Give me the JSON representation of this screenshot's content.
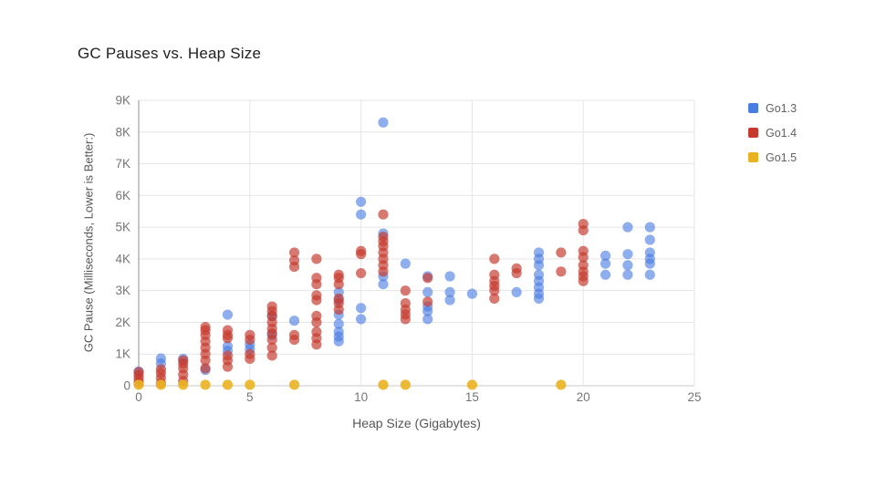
{
  "page": {
    "background": "#ffffff"
  },
  "chart_data": {
    "type": "scatter",
    "title": "GC Pauses vs. Heap Size",
    "xlabel": "Heap Size (Gigabytes)",
    "ylabel": "GC Pause (Milliseconds, Lower is Better:)",
    "xlim": [
      0,
      25
    ],
    "ylim": [
      0,
      9000
    ],
    "x_ticks": [
      0,
      5,
      10,
      15,
      20,
      25
    ],
    "y_ticks": [
      {
        "value": 0,
        "label": "0"
      },
      {
        "value": 1000,
        "label": "1K"
      },
      {
        "value": 2000,
        "label": "2K"
      },
      {
        "value": 3000,
        "label": "3K"
      },
      {
        "value": 4000,
        "label": "4K"
      },
      {
        "value": 5000,
        "label": "5K"
      },
      {
        "value": 6000,
        "label": "6K"
      },
      {
        "value": 7000,
        "label": "7K"
      },
      {
        "value": 8000,
        "label": "8K"
      },
      {
        "value": 9000,
        "label": "9K"
      }
    ],
    "grid": true,
    "legend_position": "right",
    "series": [
      {
        "name": "Go1.3",
        "color": "#4a7de2",
        "alpha": 0.62,
        "points": [
          [
            0,
            450
          ],
          [
            1,
            700
          ],
          [
            1,
            860
          ],
          [
            2,
            850
          ],
          [
            3,
            500
          ],
          [
            4,
            2240
          ],
          [
            4,
            1250
          ],
          [
            4,
            1100
          ],
          [
            5,
            1300
          ],
          [
            5,
            1150
          ],
          [
            6,
            2200
          ],
          [
            6,
            1600
          ],
          [
            7,
            2050
          ],
          [
            9,
            2950
          ],
          [
            9,
            2700
          ],
          [
            9,
            2240
          ],
          [
            9,
            1950
          ],
          [
            9,
            1700
          ],
          [
            9,
            1550
          ],
          [
            9,
            1400
          ],
          [
            10,
            5800
          ],
          [
            10,
            5400
          ],
          [
            10,
            2450
          ],
          [
            10,
            2100
          ],
          [
            11,
            8300
          ],
          [
            11,
            4800
          ],
          [
            11,
            3450
          ],
          [
            11,
            3200
          ],
          [
            12,
            3850
          ],
          [
            13,
            3450
          ],
          [
            13,
            2950
          ],
          [
            13,
            2500
          ],
          [
            13,
            2350
          ],
          [
            13,
            2100
          ],
          [
            14,
            3450
          ],
          [
            14,
            2950
          ],
          [
            14,
            2700
          ],
          [
            15,
            2900
          ],
          [
            17,
            2950
          ],
          [
            18,
            4200
          ],
          [
            18,
            4000
          ],
          [
            18,
            3800
          ],
          [
            18,
            3500
          ],
          [
            18,
            3300
          ],
          [
            18,
            3100
          ],
          [
            18,
            2900
          ],
          [
            18,
            2750
          ],
          [
            21,
            4100
          ],
          [
            21,
            3850
          ],
          [
            21,
            3500
          ],
          [
            22,
            5000
          ],
          [
            22,
            4150
          ],
          [
            22,
            3800
          ],
          [
            22,
            3500
          ],
          [
            23,
            5000
          ],
          [
            23,
            4600
          ],
          [
            23,
            4200
          ],
          [
            23,
            4000
          ],
          [
            23,
            3850
          ],
          [
            23,
            3500
          ]
        ]
      },
      {
        "name": "Go1.4",
        "color": "#c5392e",
        "alpha": 0.68,
        "points": [
          [
            0,
            100
          ],
          [
            0,
            220
          ],
          [
            0,
            330
          ],
          [
            0,
            430
          ],
          [
            1,
            80
          ],
          [
            1,
            250
          ],
          [
            1,
            400
          ],
          [
            1,
            520
          ],
          [
            2,
            150
          ],
          [
            2,
            350
          ],
          [
            2,
            550
          ],
          [
            2,
            700
          ],
          [
            2,
            800
          ],
          [
            3,
            550
          ],
          [
            3,
            800
          ],
          [
            3,
            1000
          ],
          [
            3,
            1200
          ],
          [
            3,
            1400
          ],
          [
            3,
            1600
          ],
          [
            3,
            1750
          ],
          [
            3,
            1850
          ],
          [
            4,
            600
          ],
          [
            4,
            800
          ],
          [
            4,
            950
          ],
          [
            4,
            1500
          ],
          [
            4,
            1600
          ],
          [
            4,
            1750
          ],
          [
            5,
            850
          ],
          [
            5,
            1000
          ],
          [
            5,
            1450
          ],
          [
            5,
            1600
          ],
          [
            6,
            950
          ],
          [
            6,
            1200
          ],
          [
            6,
            1450
          ],
          [
            6,
            1650
          ],
          [
            6,
            1800
          ],
          [
            6,
            2000
          ],
          [
            6,
            2200
          ],
          [
            6,
            2350
          ],
          [
            6,
            2500
          ],
          [
            7,
            1450
          ],
          [
            7,
            1600
          ],
          [
            7,
            3750
          ],
          [
            7,
            3950
          ],
          [
            7,
            4200
          ],
          [
            8,
            1300
          ],
          [
            8,
            1500
          ],
          [
            8,
            1700
          ],
          [
            8,
            2000
          ],
          [
            8,
            2200
          ],
          [
            8,
            2700
          ],
          [
            8,
            2850
          ],
          [
            8,
            3200
          ],
          [
            8,
            3400
          ],
          [
            8,
            4000
          ],
          [
            9,
            2400
          ],
          [
            9,
            2600
          ],
          [
            9,
            2750
          ],
          [
            9,
            3200
          ],
          [
            9,
            3400
          ],
          [
            9,
            3500
          ],
          [
            10,
            3550
          ],
          [
            10,
            4150
          ],
          [
            10,
            4250
          ],
          [
            11,
            3600
          ],
          [
            11,
            3800
          ],
          [
            11,
            4000
          ],
          [
            11,
            4200
          ],
          [
            11,
            4400
          ],
          [
            11,
            4550
          ],
          [
            11,
            4700
          ],
          [
            11,
            5400
          ],
          [
            12,
            2100
          ],
          [
            12,
            2250
          ],
          [
            12,
            2400
          ],
          [
            12,
            2600
          ],
          [
            12,
            3000
          ],
          [
            13,
            2650
          ],
          [
            13,
            3400
          ],
          [
            16,
            2750
          ],
          [
            16,
            3000
          ],
          [
            16,
            3150
          ],
          [
            16,
            3300
          ],
          [
            16,
            3500
          ],
          [
            16,
            4000
          ],
          [
            17,
            3550
          ],
          [
            17,
            3700
          ],
          [
            19,
            3600
          ],
          [
            19,
            4200
          ],
          [
            20,
            3300
          ],
          [
            20,
            3450
          ],
          [
            20,
            3600
          ],
          [
            20,
            3800
          ],
          [
            20,
            4050
          ],
          [
            20,
            4250
          ],
          [
            20,
            4900
          ],
          [
            20,
            5100
          ]
        ]
      },
      {
        "name": "Go1.5",
        "color": "#eab220",
        "alpha": 0.9,
        "points": [
          [
            0,
            30
          ],
          [
            1,
            30
          ],
          [
            2,
            30
          ],
          [
            3,
            30
          ],
          [
            4,
            30
          ],
          [
            5,
            30
          ],
          [
            7,
            30
          ],
          [
            11,
            30
          ],
          [
            12,
            30
          ],
          [
            15,
            30
          ],
          [
            19,
            30
          ]
        ]
      }
    ]
  }
}
